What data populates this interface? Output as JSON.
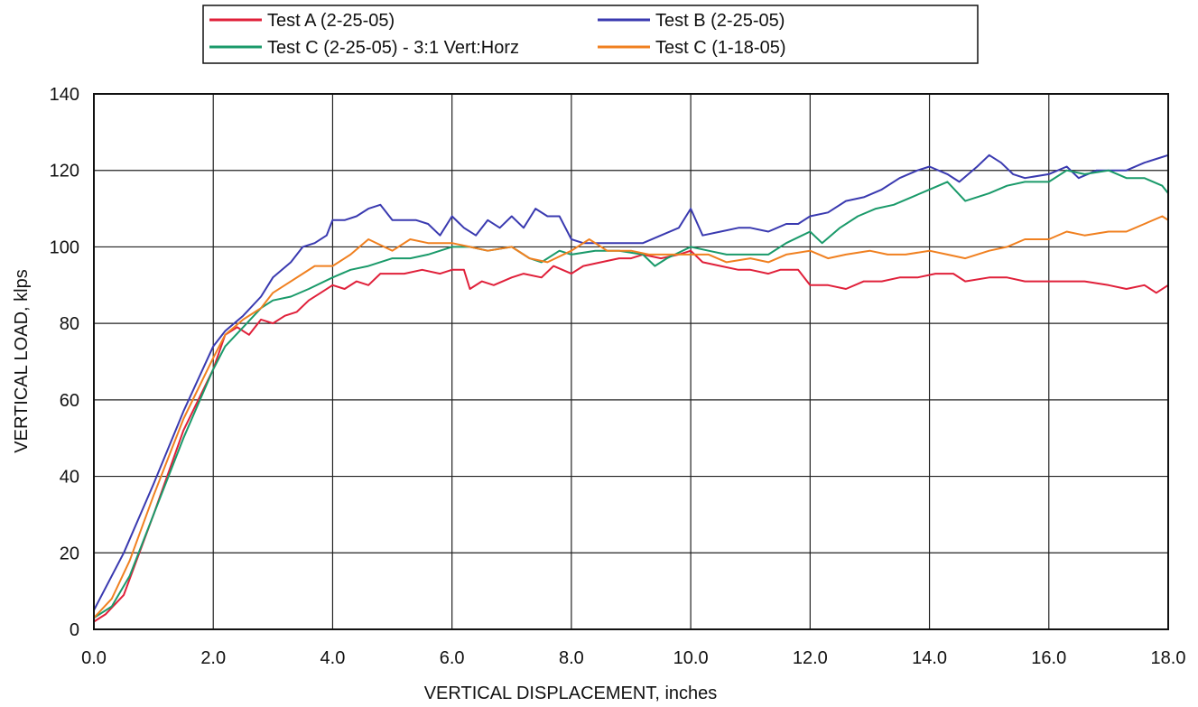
{
  "chart_data": {
    "type": "line",
    "xlabel": "VERTICAL DISPLACEMENT, inches",
    "ylabel": "VERTICAL LOAD, klps",
    "xlim": [
      0,
      18
    ],
    "ylim": [
      0,
      140
    ],
    "x_ticks": [
      "0.0",
      "2.0",
      "4.0",
      "6.0",
      "8.0",
      "10.0",
      "12.0",
      "14.0",
      "16.0",
      "18.0"
    ],
    "y_ticks": [
      "0",
      "20",
      "40",
      "60",
      "80",
      "100",
      "120",
      "140"
    ],
    "grid": true,
    "legend_position": "top-center",
    "series": [
      {
        "name": "Test A (2-25-05)",
        "color": "#e0203a",
        "points": [
          [
            0,
            2
          ],
          [
            0.2,
            4
          ],
          [
            0.5,
            9
          ],
          [
            1.0,
            30
          ],
          [
            1.5,
            52
          ],
          [
            2.0,
            68
          ],
          [
            2.2,
            77
          ],
          [
            2.4,
            79
          ],
          [
            2.6,
            77
          ],
          [
            2.8,
            81
          ],
          [
            3.0,
            80
          ],
          [
            3.2,
            82
          ],
          [
            3.4,
            83
          ],
          [
            3.6,
            86
          ],
          [
            3.8,
            88
          ],
          [
            4.0,
            90
          ],
          [
            4.2,
            89
          ],
          [
            4.4,
            91
          ],
          [
            4.6,
            90
          ],
          [
            4.8,
            93
          ],
          [
            5.0,
            93
          ],
          [
            5.2,
            93
          ],
          [
            5.5,
            94
          ],
          [
            5.8,
            93
          ],
          [
            6.0,
            94
          ],
          [
            6.2,
            94
          ],
          [
            6.3,
            89
          ],
          [
            6.5,
            91
          ],
          [
            6.7,
            90
          ],
          [
            7.0,
            92
          ],
          [
            7.2,
            93
          ],
          [
            7.5,
            92
          ],
          [
            7.7,
            95
          ],
          [
            8.0,
            93
          ],
          [
            8.2,
            95
          ],
          [
            8.5,
            96
          ],
          [
            8.8,
            97
          ],
          [
            9.0,
            97
          ],
          [
            9.2,
            98
          ],
          [
            9.5,
            97
          ],
          [
            9.8,
            98
          ],
          [
            10.0,
            99
          ],
          [
            10.2,
            96
          ],
          [
            10.5,
            95
          ],
          [
            10.8,
            94
          ],
          [
            11.0,
            94
          ],
          [
            11.3,
            93
          ],
          [
            11.5,
            94
          ],
          [
            11.8,
            94
          ],
          [
            12.0,
            90
          ],
          [
            12.3,
            90
          ],
          [
            12.6,
            89
          ],
          [
            12.9,
            91
          ],
          [
            13.2,
            91
          ],
          [
            13.5,
            92
          ],
          [
            13.8,
            92
          ],
          [
            14.1,
            93
          ],
          [
            14.4,
            93
          ],
          [
            14.6,
            91
          ],
          [
            15.0,
            92
          ],
          [
            15.3,
            92
          ],
          [
            15.6,
            91
          ],
          [
            16.0,
            91
          ],
          [
            16.3,
            91
          ],
          [
            16.6,
            91
          ],
          [
            17.0,
            90
          ],
          [
            17.3,
            89
          ],
          [
            17.6,
            90
          ],
          [
            17.8,
            88
          ],
          [
            18.0,
            90
          ]
        ]
      },
      {
        "name": "Test B (2-25-05)",
        "color": "#3a3ab0",
        "points": [
          [
            0,
            5
          ],
          [
            0.5,
            20
          ],
          [
            1.0,
            38
          ],
          [
            1.5,
            57
          ],
          [
            2.0,
            74
          ],
          [
            2.2,
            78
          ],
          [
            2.5,
            82
          ],
          [
            2.8,
            87
          ],
          [
            3.0,
            92
          ],
          [
            3.3,
            96
          ],
          [
            3.5,
            100
          ],
          [
            3.7,
            101
          ],
          [
            3.9,
            103
          ],
          [
            4.0,
            107
          ],
          [
            4.2,
            107
          ],
          [
            4.4,
            108
          ],
          [
            4.6,
            110
          ],
          [
            4.8,
            111
          ],
          [
            5.0,
            107
          ],
          [
            5.2,
            107
          ],
          [
            5.4,
            107
          ],
          [
            5.6,
            106
          ],
          [
            5.8,
            103
          ],
          [
            6.0,
            108
          ],
          [
            6.2,
            105
          ],
          [
            6.4,
            103
          ],
          [
            6.6,
            107
          ],
          [
            6.8,
            105
          ],
          [
            7.0,
            108
          ],
          [
            7.2,
            105
          ],
          [
            7.4,
            110
          ],
          [
            7.6,
            108
          ],
          [
            7.8,
            108
          ],
          [
            8.0,
            102
          ],
          [
            8.2,
            101
          ],
          [
            8.5,
            101
          ],
          [
            8.8,
            101
          ],
          [
            9.2,
            101
          ],
          [
            9.5,
            103
          ],
          [
            9.8,
            105
          ],
          [
            10.0,
            110
          ],
          [
            10.2,
            103
          ],
          [
            10.5,
            104
          ],
          [
            10.8,
            105
          ],
          [
            11.0,
            105
          ],
          [
            11.3,
            104
          ],
          [
            11.6,
            106
          ],
          [
            11.8,
            106
          ],
          [
            12.0,
            108
          ],
          [
            12.3,
            109
          ],
          [
            12.6,
            112
          ],
          [
            12.9,
            113
          ],
          [
            13.2,
            115
          ],
          [
            13.5,
            118
          ],
          [
            13.8,
            120
          ],
          [
            14.0,
            121
          ],
          [
            14.3,
            119
          ],
          [
            14.5,
            117
          ],
          [
            14.8,
            121
          ],
          [
            15.0,
            124
          ],
          [
            15.2,
            122
          ],
          [
            15.4,
            119
          ],
          [
            15.6,
            118
          ],
          [
            16.0,
            119
          ],
          [
            16.3,
            121
          ],
          [
            16.5,
            118
          ],
          [
            16.8,
            120
          ],
          [
            17.0,
            120
          ],
          [
            17.3,
            120
          ],
          [
            17.6,
            122
          ],
          [
            17.8,
            123
          ],
          [
            18.0,
            124
          ]
        ]
      },
      {
        "name": "Test C (2-25-05) - 3:1 Vert:Horz",
        "color": "#1a9a6a",
        "points": [
          [
            0,
            3
          ],
          [
            0.3,
            6
          ],
          [
            0.6,
            14
          ],
          [
            1.0,
            30
          ],
          [
            1.5,
            50
          ],
          [
            2.0,
            68
          ],
          [
            2.2,
            74
          ],
          [
            2.5,
            79
          ],
          [
            2.8,
            84
          ],
          [
            3.0,
            86
          ],
          [
            3.3,
            87
          ],
          [
            3.6,
            89
          ],
          [
            4.0,
            92
          ],
          [
            4.3,
            94
          ],
          [
            4.6,
            95
          ],
          [
            5.0,
            97
          ],
          [
            5.3,
            97
          ],
          [
            5.6,
            98
          ],
          [
            6.0,
            100
          ],
          [
            6.3,
            100
          ],
          [
            6.6,
            99
          ],
          [
            7.0,
            100
          ],
          [
            7.3,
            97
          ],
          [
            7.5,
            96
          ],
          [
            7.8,
            99
          ],
          [
            8.0,
            98
          ],
          [
            8.4,
            99
          ],
          [
            8.8,
            99
          ],
          [
            9.2,
            98
          ],
          [
            9.4,
            95
          ],
          [
            9.6,
            97
          ],
          [
            10.0,
            100
          ],
          [
            10.3,
            99
          ],
          [
            10.6,
            98
          ],
          [
            11.0,
            98
          ],
          [
            11.3,
            98
          ],
          [
            11.6,
            101
          ],
          [
            12.0,
            104
          ],
          [
            12.2,
            101
          ],
          [
            12.5,
            105
          ],
          [
            12.8,
            108
          ],
          [
            13.1,
            110
          ],
          [
            13.4,
            111
          ],
          [
            13.7,
            113
          ],
          [
            14.0,
            115
          ],
          [
            14.3,
            117
          ],
          [
            14.6,
            112
          ],
          [
            15.0,
            114
          ],
          [
            15.3,
            116
          ],
          [
            15.6,
            117
          ],
          [
            16.0,
            117
          ],
          [
            16.3,
            120
          ],
          [
            16.6,
            119
          ],
          [
            17.0,
            120
          ],
          [
            17.3,
            118
          ],
          [
            17.6,
            118
          ],
          [
            17.9,
            116
          ],
          [
            18.0,
            114
          ]
        ]
      },
      {
        "name": "Test C (1-18-05)",
        "color": "#f08020",
        "points": [
          [
            0,
            3
          ],
          [
            0.3,
            8
          ],
          [
            0.6,
            18
          ],
          [
            1.0,
            35
          ],
          [
            1.5,
            55
          ],
          [
            2.0,
            71
          ],
          [
            2.2,
            77
          ],
          [
            2.5,
            81
          ],
          [
            2.8,
            84
          ],
          [
            3.0,
            88
          ],
          [
            3.2,
            90
          ],
          [
            3.5,
            93
          ],
          [
            3.7,
            95
          ],
          [
            4.0,
            95
          ],
          [
            4.3,
            98
          ],
          [
            4.6,
            102
          ],
          [
            5.0,
            99
          ],
          [
            5.3,
            102
          ],
          [
            5.6,
            101
          ],
          [
            6.0,
            101
          ],
          [
            6.3,
            100
          ],
          [
            6.6,
            99
          ],
          [
            7.0,
            100
          ],
          [
            7.3,
            97
          ],
          [
            7.6,
            96
          ],
          [
            8.0,
            99
          ],
          [
            8.3,
            102
          ],
          [
            8.6,
            99
          ],
          [
            9.0,
            99
          ],
          [
            9.3,
            98
          ],
          [
            9.6,
            98
          ],
          [
            10.0,
            98
          ],
          [
            10.3,
            98
          ],
          [
            10.6,
            96
          ],
          [
            11.0,
            97
          ],
          [
            11.3,
            96
          ],
          [
            11.6,
            98
          ],
          [
            12.0,
            99
          ],
          [
            12.3,
            97
          ],
          [
            12.6,
            98
          ],
          [
            13.0,
            99
          ],
          [
            13.3,
            98
          ],
          [
            13.6,
            98
          ],
          [
            14.0,
            99
          ],
          [
            14.3,
            98
          ],
          [
            14.6,
            97
          ],
          [
            15.0,
            99
          ],
          [
            15.3,
            100
          ],
          [
            15.6,
            102
          ],
          [
            16.0,
            102
          ],
          [
            16.3,
            104
          ],
          [
            16.6,
            103
          ],
          [
            17.0,
            104
          ],
          [
            17.3,
            104
          ],
          [
            17.6,
            106
          ],
          [
            17.9,
            108
          ],
          [
            18.0,
            107
          ]
        ]
      }
    ]
  }
}
